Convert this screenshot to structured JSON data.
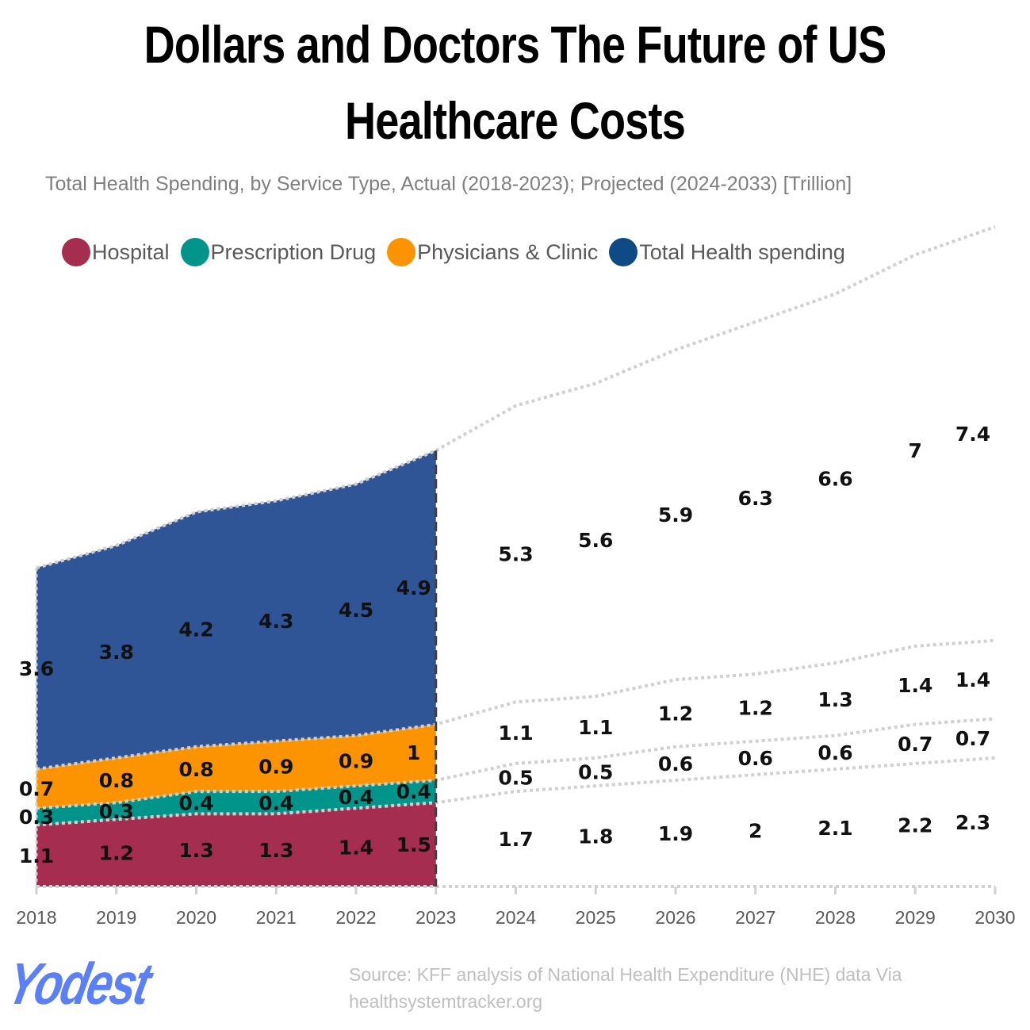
{
  "chart_data": {
    "type": "area",
    "stacked": true,
    "title": "Dollars and Doctors The Future of US Healthcare Costs",
    "subtitle": "Total Health Spending, by Service Type, Actual (2018-2023); Projected (2024-2033) [Trillion]",
    "categories": [
      "2018",
      "2019",
      "2020",
      "2021",
      "2022",
      "2023",
      "2024",
      "2025",
      "2026",
      "2027",
      "2028",
      "2029",
      "2030"
    ],
    "actual_through": "2023",
    "series": [
      {
        "name": "Hospital",
        "color": "#a52d4f",
        "values": [
          1.1,
          1.2,
          1.3,
          1.3,
          1.4,
          1.5,
          1.7,
          1.8,
          1.9,
          2,
          2.1,
          2.2,
          2.3
        ]
      },
      {
        "name": "Prescription Drug",
        "color": "#00948a",
        "values": [
          0.3,
          0.3,
          0.4,
          0.4,
          0.4,
          0.4,
          0.5,
          0.5,
          0.6,
          0.6,
          0.6,
          0.7,
          0.7
        ]
      },
      {
        "name": "Physicians & Clinic",
        "color": "#fb9400",
        "values": [
          0.7,
          0.8,
          0.8,
          0.9,
          0.9,
          1,
          1.1,
          1.1,
          1.2,
          1.2,
          1.3,
          1.4,
          1.4
        ]
      },
      {
        "name": "Total Health spending",
        "color": "#2f5597",
        "legend_color": "#0e4a84",
        "values": [
          3.6,
          3.8,
          4.2,
          4.3,
          4.5,
          4.9,
          5.3,
          5.6,
          5.9,
          6.3,
          6.6,
          7,
          7.4
        ]
      }
    ],
    "legend_position": "top",
    "grid": false,
    "y_axis_visible": false
  },
  "source": "Source: KFF analysis of National Health Expenditure (NHE) data Via healthsystemtracker.org",
  "logo_text": "Yodest"
}
